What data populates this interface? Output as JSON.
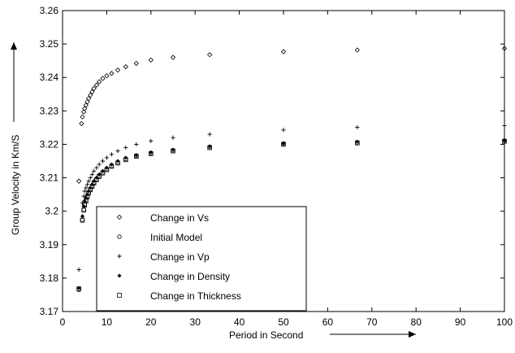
{
  "chart_data": {
    "type": "scatter",
    "title": "",
    "xlabel": "Period in Second",
    "ylabel": "Group Velocity in Km/S",
    "xlim": [
      0,
      100
    ],
    "ylim": [
      3.17,
      3.26
    ],
    "xticks": [
      "0",
      "10",
      "20",
      "30",
      "40",
      "50",
      "60",
      "70",
      "80",
      "90",
      "100"
    ],
    "yticks": [
      "3.17",
      "3.18",
      "3.19",
      "3.2",
      "3.21",
      "3.22",
      "3.23",
      "3.24",
      "3.25",
      "3.26"
    ],
    "grid": false,
    "legend_position": "bottom-left",
    "series": [
      {
        "name": "Change in Vs",
        "marker": "diamond",
        "x": [
          3.7,
          4.3,
          4.5,
          4.8,
          5.0,
          5.3,
          5.6,
          5.9,
          6.3,
          6.7,
          7.1,
          7.7,
          8.3,
          9.1,
          10.0,
          11.1,
          12.5,
          14.3,
          16.7,
          20.0,
          25.0,
          33.3,
          50.0,
          66.7,
          100.0
        ],
        "values": [
          3.209,
          3.2262,
          3.2282,
          3.2297,
          3.2307,
          3.2317,
          3.2327,
          3.2337,
          3.2347,
          3.2357,
          3.2367,
          3.2377,
          3.2387,
          3.2397,
          3.2405,
          3.2412,
          3.2422,
          3.2432,
          3.2442,
          3.2452,
          3.246,
          3.2468,
          3.2477,
          3.2482,
          3.2487
        ]
      },
      {
        "name": "Initial Model",
        "marker": "circle",
        "x": [
          3.7,
          4.5,
          4.8,
          5.0,
          5.3,
          5.6,
          5.9,
          6.3,
          6.7,
          7.1,
          7.7,
          8.3,
          9.1,
          10.0,
          11.1,
          12.5,
          14.3,
          16.7,
          20.0,
          25.0,
          33.3,
          50.0,
          66.7,
          100.0
        ],
        "values": [
          3.1765,
          3.1975,
          3.2005,
          3.202,
          3.2032,
          3.2044,
          3.2056,
          3.2066,
          3.2076,
          3.2086,
          3.2096,
          3.2106,
          3.2116,
          3.2126,
          3.2136,
          3.2146,
          3.2156,
          3.2166,
          3.2174,
          3.2182,
          3.2192,
          3.2202,
          3.2206,
          3.2211
        ]
      },
      {
        "name": "Change in Vp",
        "marker": "plus",
        "x": [
          3.7,
          4.5,
          4.8,
          5.0,
          5.3,
          5.6,
          5.9,
          6.3,
          6.7,
          7.1,
          7.7,
          8.3,
          9.1,
          10.0,
          11.1,
          12.5,
          14.3,
          16.7,
          20.0,
          25.0,
          33.3,
          50.0,
          66.7,
          100.0
        ],
        "values": [
          3.1825,
          3.2025,
          3.2045,
          3.206,
          3.207,
          3.208,
          3.209,
          3.21,
          3.211,
          3.212,
          3.213,
          3.214,
          3.215,
          3.216,
          3.217,
          3.218,
          3.219,
          3.22,
          3.221,
          3.222,
          3.223,
          3.2243,
          3.2251,
          3.2256
        ]
      },
      {
        "name": "Change in Density",
        "marker": "filled-diamond",
        "x": [
          3.7,
          4.5,
          4.8,
          5.0,
          5.3,
          5.6,
          5.9,
          6.3,
          6.7,
          7.1,
          7.7,
          8.3,
          9.1,
          10.0,
          11.1,
          12.5,
          14.3,
          16.7,
          20.0,
          25.0,
          33.3,
          50.0,
          66.7,
          100.0
        ],
        "values": [
          3.177,
          3.1985,
          3.2015,
          3.203,
          3.204,
          3.205,
          3.206,
          3.207,
          3.208,
          3.209,
          3.21,
          3.211,
          3.212,
          3.213,
          3.214,
          3.215,
          3.216,
          3.2168,
          3.2176,
          3.2184,
          3.2194,
          3.2203,
          3.2208,
          3.2212
        ]
      },
      {
        "name": "Change in Thickness",
        "marker": "square",
        "x": [
          3.7,
          4.5,
          4.8,
          5.0,
          5.3,
          5.6,
          5.9,
          6.3,
          6.7,
          7.1,
          7.7,
          8.3,
          9.1,
          10.0,
          11.1,
          12.5,
          14.3,
          16.7,
          20.0,
          25.0,
          33.3,
          50.0,
          66.7,
          100.0
        ],
        "values": [
          3.1768,
          3.1973,
          3.2003,
          3.2018,
          3.203,
          3.2042,
          3.2054,
          3.2064,
          3.2074,
          3.2084,
          3.2094,
          3.2104,
          3.2114,
          3.2124,
          3.2134,
          3.2144,
          3.2154,
          3.2164,
          3.2172,
          3.218,
          3.219,
          3.22,
          3.2204,
          3.2209
        ]
      }
    ]
  }
}
